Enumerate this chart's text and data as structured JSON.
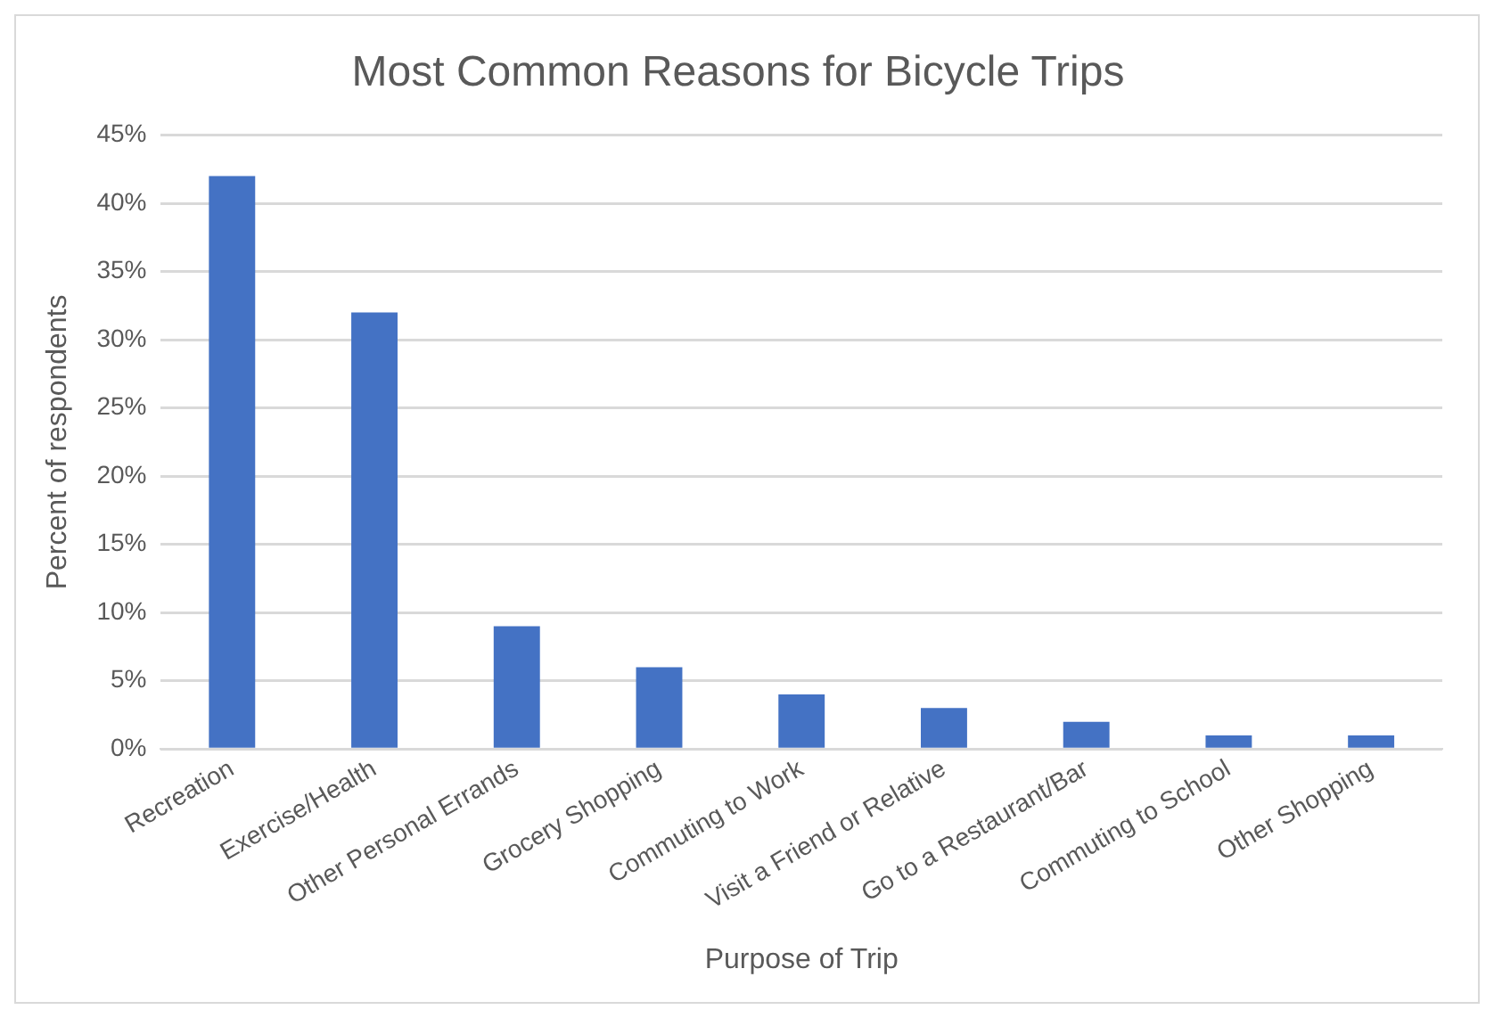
{
  "chart_data": {
    "type": "bar",
    "title": "Most Common Reasons for Bicycle Trips",
    "xlabel": "Purpose of Trip",
    "ylabel": "Percent of respondents",
    "categories": [
      "Recreation",
      "Exercise/Health",
      "Other Personal Errands",
      "Grocery Shopping",
      "Commuting to Work",
      "Visit a Friend or Relative",
      "Go to a Restaurant/Bar",
      "Commuting to School",
      "Other Shopping"
    ],
    "values": [
      42,
      32,
      9,
      6,
      4,
      3,
      2,
      1,
      1
    ],
    "color": "#4472c4",
    "ylim": [
      0,
      45
    ],
    "yticks": [
      {
        "value": 0,
        "label": "0%"
      },
      {
        "value": 5,
        "label": "5%"
      },
      {
        "value": 10,
        "label": "10%"
      },
      {
        "value": 15,
        "label": "15%"
      },
      {
        "value": 20,
        "label": "20%"
      },
      {
        "value": 25,
        "label": "25%"
      },
      {
        "value": 30,
        "label": "30%"
      },
      {
        "value": 35,
        "label": "35%"
      },
      {
        "value": 40,
        "label": "40%"
      },
      {
        "value": 45,
        "label": "45%"
      }
    ],
    "grid": "y",
    "legend": false
  }
}
